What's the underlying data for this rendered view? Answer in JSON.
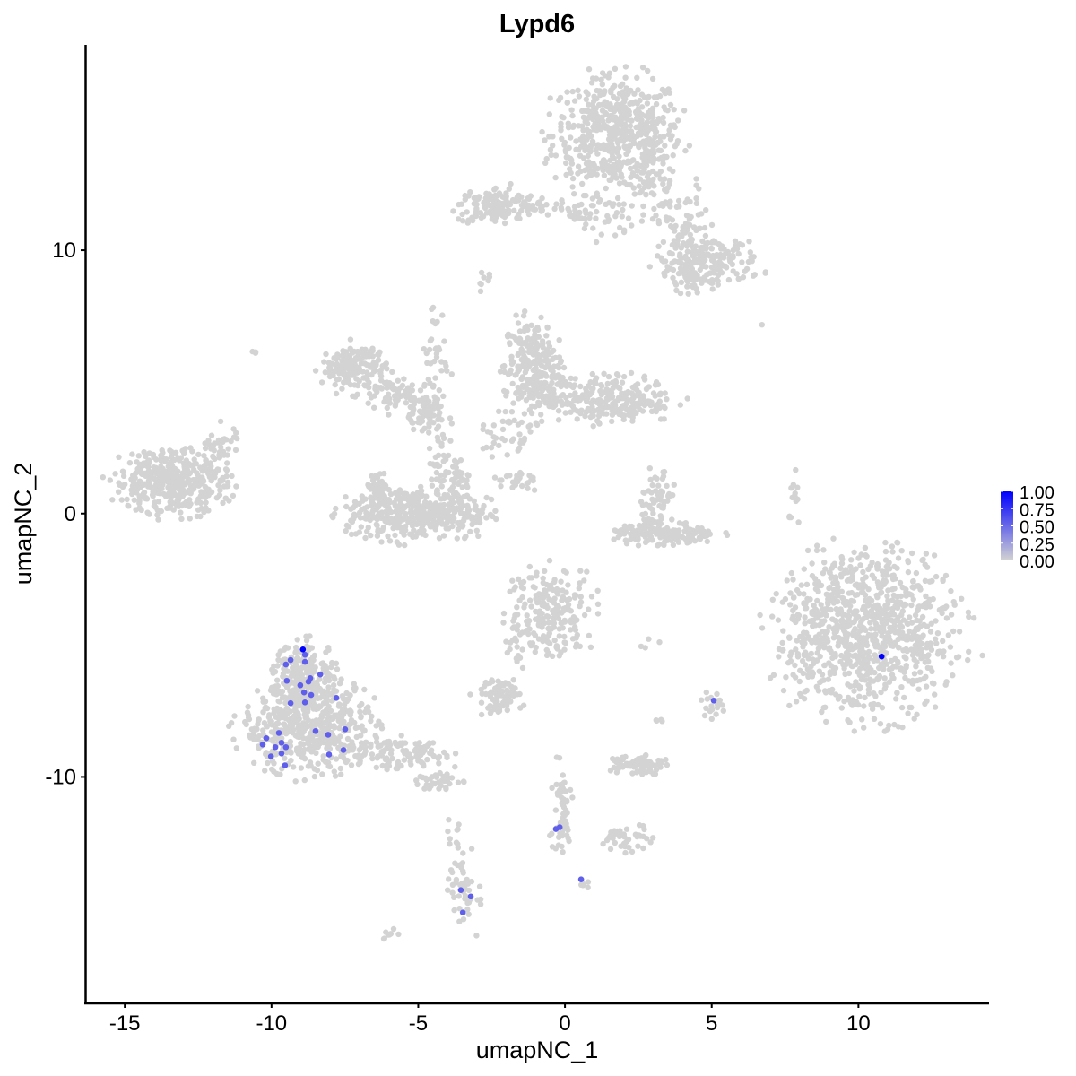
{
  "chart_data": {
    "type": "scatter",
    "title": "Lypd6",
    "xlabel": "umapNC_1",
    "ylabel": "umapNC_2",
    "xlim": [
      -16.35,
      14.45
    ],
    "ylim": [
      -18.6,
      17.8
    ],
    "x_ticks": [
      -15,
      -10,
      -5,
      0,
      5,
      10
    ],
    "y_ticks": [
      -10,
      0,
      10
    ],
    "grid": false,
    "color_scale": {
      "low": "#d3d3d3",
      "high": "#0000ff",
      "range": [
        0,
        1
      ]
    },
    "legend": {
      "position": "right",
      "labels": [
        "1.00",
        "0.75",
        "0.50",
        "0.25",
        "0.00"
      ]
    },
    "background_cells_value": 0,
    "cell_clusters": [
      {
        "x": 1.77,
        "y": 14.4,
        "sx": 1.1,
        "sy": 1.1,
        "n": 550
      },
      {
        "x": 2.75,
        "y": 13.2,
        "sx": 0.4,
        "sy": 0.9,
        "n": 60
      },
      {
        "x": -2.3,
        "y": 11.7,
        "sx": 0.7,
        "sy": 0.35,
        "n": 150
      },
      {
        "x": -0.5,
        "y": 11.6,
        "sx": 0.9,
        "sy": 0.2,
        "n": 40
      },
      {
        "x": 1.3,
        "y": 11.2,
        "sx": 0.5,
        "sy": 0.4,
        "n": 30
      },
      {
        "x": 3.97,
        "y": 11.0,
        "sx": 0.6,
        "sy": 0.8,
        "n": 70
      },
      {
        "x": 4.9,
        "y": 9.6,
        "sx": 0.9,
        "sy": 0.45,
        "n": 170
      },
      {
        "x": 4.3,
        "y": 9.0,
        "sx": 0.4,
        "sy": 0.3,
        "n": 40
      },
      {
        "x": -2.75,
        "y": 8.77,
        "sx": 0.15,
        "sy": 0.2,
        "n": 8
      },
      {
        "x": -7.18,
        "y": 5.53,
        "sx": 0.55,
        "sy": 0.45,
        "n": 170
      },
      {
        "x": -5.8,
        "y": 4.5,
        "sx": 0.6,
        "sy": 0.35,
        "n": 70
      },
      {
        "x": -4.89,
        "y": 3.82,
        "sx": 0.3,
        "sy": 0.3,
        "n": 50
      },
      {
        "x": -4.28,
        "y": 2.46,
        "sx": 0.2,
        "sy": 0.8,
        "n": 40
      },
      {
        "x": -4.4,
        "y": 6.0,
        "sx": 0.25,
        "sy": 1.2,
        "n": 40
      },
      {
        "x": -5.04,
        "y": 0.0,
        "sx": 1.2,
        "sy": 0.5,
        "n": 420
      },
      {
        "x": -6.42,
        "y": 0.9,
        "sx": 0.2,
        "sy": 0.4,
        "n": 45
      },
      {
        "x": -3.67,
        "y": 1.1,
        "sx": 0.2,
        "sy": 0.5,
        "n": 45
      },
      {
        "x": -1.07,
        "y": 5.5,
        "sx": 0.5,
        "sy": 0.95,
        "n": 260
      },
      {
        "x": 1.53,
        "y": 4.33,
        "sx": 1.1,
        "sy": 0.45,
        "n": 270
      },
      {
        "x": -2.14,
        "y": 3.14,
        "sx": 0.45,
        "sy": 0.5,
        "n": 40
      },
      {
        "x": -1.68,
        "y": 1.26,
        "sx": 0.4,
        "sy": 0.2,
        "n": 25
      },
      {
        "x": 3.36,
        "y": -0.78,
        "sx": 0.9,
        "sy": 0.22,
        "n": 150
      },
      {
        "x": 3.2,
        "y": 0.6,
        "sx": 0.3,
        "sy": 0.6,
        "n": 60
      },
      {
        "x": 7.85,
        "y": 0.41,
        "sx": 0.1,
        "sy": 0.6,
        "n": 15
      },
      {
        "x": 10.24,
        "y": -4.54,
        "sx": 1.55,
        "sy": 1.55,
        "n": 950
      },
      {
        "x": -13.45,
        "y": 1.2,
        "sx": 0.95,
        "sy": 0.6,
        "n": 420
      },
      {
        "x": -11.77,
        "y": 2.46,
        "sx": 0.35,
        "sy": 0.5,
        "n": 40
      },
      {
        "x": -10.54,
        "y": 6.14,
        "sx": 0.05,
        "sy": 0.05,
        "n": 3
      },
      {
        "x": -0.46,
        "y": -3.69,
        "sx": 0.75,
        "sy": 0.85,
        "n": 210
      },
      {
        "x": -8.71,
        "y": -8.2,
        "sx": 1.15,
        "sy": 0.85,
        "n": 520
      },
      {
        "x": -8.86,
        "y": -6.1,
        "sx": 0.55,
        "sy": 0.6,
        "n": 200
      },
      {
        "x": -5.5,
        "y": -9.15,
        "sx": 1.0,
        "sy": 0.3,
        "n": 110
      },
      {
        "x": -4.28,
        "y": -10.17,
        "sx": 0.4,
        "sy": 0.2,
        "n": 40
      },
      {
        "x": -2.29,
        "y": -6.93,
        "sx": 0.4,
        "sy": 0.35,
        "n": 80
      },
      {
        "x": -1.68,
        "y": -5.05,
        "sx": 0.2,
        "sy": 0.6,
        "n": 15
      },
      {
        "x": 2.44,
        "y": -9.49,
        "sx": 0.5,
        "sy": 0.2,
        "n": 80
      },
      {
        "x": 5.04,
        "y": -7.27,
        "sx": 0.2,
        "sy": 0.3,
        "n": 20
      },
      {
        "x": -0.15,
        "y": -11.3,
        "sx": 0.2,
        "sy": 0.9,
        "n": 60
      },
      {
        "x": 2.14,
        "y": -12.39,
        "sx": 0.4,
        "sy": 0.3,
        "n": 40
      },
      {
        "x": -3.36,
        "y": -14.3,
        "sx": 0.3,
        "sy": 0.9,
        "n": 50
      },
      {
        "x": -5.96,
        "y": -16.0,
        "sx": 0.15,
        "sy": 0.1,
        "n": 8
      },
      {
        "x": -3.82,
        "y": -12.2,
        "sx": 0.1,
        "sy": 0.3,
        "n": 8
      },
      {
        "x": 0.6,
        "y": -14.1,
        "sx": 0.1,
        "sy": 0.1,
        "n": 5
      },
      {
        "x": 6.72,
        "y": 7.17,
        "sx": 0.02,
        "sy": 0.02,
        "n": 1
      },
      {
        "x": 2.8,
        "y": -5.0,
        "sx": 0.2,
        "sy": 0.1,
        "n": 4
      },
      {
        "x": 3.3,
        "y": -7.8,
        "sx": 0.1,
        "sy": 0.1,
        "n": 4
      }
    ],
    "expressing_cells": [
      {
        "x": -8.86,
        "y": -5.36,
        "value": 0.55
      },
      {
        "x": -9.35,
        "y": -5.56,
        "value": 0.55
      },
      {
        "x": -9.51,
        "y": -5.73,
        "value": 0.55
      },
      {
        "x": -8.86,
        "y": -5.63,
        "value": 0.55
      },
      {
        "x": -8.34,
        "y": -6.11,
        "value": 0.55
      },
      {
        "x": -9.48,
        "y": -6.35,
        "value": 0.55
      },
      {
        "x": -8.68,
        "y": -6.25,
        "value": 0.55
      },
      {
        "x": -8.74,
        "y": -6.38,
        "value": 0.55
      },
      {
        "x": -9.02,
        "y": -6.52,
        "value": 0.55
      },
      {
        "x": -8.89,
        "y": -6.79,
        "value": 0.55
      },
      {
        "x": -8.65,
        "y": -6.89,
        "value": 0.55
      },
      {
        "x": -7.79,
        "y": -7.0,
        "value": 0.55
      },
      {
        "x": -9.35,
        "y": -7.2,
        "value": 0.55
      },
      {
        "x": -8.86,
        "y": -7.17,
        "value": 0.55
      },
      {
        "x": -9.75,
        "y": -8.33,
        "value": 0.55
      },
      {
        "x": -8.5,
        "y": -8.26,
        "value": 0.55
      },
      {
        "x": -8.07,
        "y": -8.4,
        "value": 0.55
      },
      {
        "x": -7.49,
        "y": -8.19,
        "value": 0.55
      },
      {
        "x": -10.18,
        "y": -8.53,
        "value": 0.55
      },
      {
        "x": -10.3,
        "y": -8.77,
        "value": 0.55
      },
      {
        "x": -9.66,
        "y": -8.7,
        "value": 0.55
      },
      {
        "x": -9.87,
        "y": -8.87,
        "value": 0.55
      },
      {
        "x": -9.51,
        "y": -8.87,
        "value": 0.55
      },
      {
        "x": -7.55,
        "y": -8.98,
        "value": 0.55
      },
      {
        "x": -9.66,
        "y": -9.11,
        "value": 0.55
      },
      {
        "x": -10.02,
        "y": -9.22,
        "value": 0.55
      },
      {
        "x": -8.04,
        "y": -9.15,
        "value": 0.55
      },
      {
        "x": -9.54,
        "y": -9.56,
        "value": 0.55
      },
      {
        "x": 5.07,
        "y": -7.1,
        "value": 0.55
      },
      {
        "x": -0.31,
        "y": -11.98,
        "value": 0.55
      },
      {
        "x": -0.18,
        "y": -11.91,
        "value": 0.55
      },
      {
        "x": 0.55,
        "y": -13.89,
        "value": 0.55
      },
      {
        "x": -3.55,
        "y": -14.3,
        "value": 0.55
      },
      {
        "x": -3.21,
        "y": -14.54,
        "value": 0.55
      },
      {
        "x": -3.48,
        "y": -15.15,
        "value": 0.55
      },
      {
        "x": -8.93,
        "y": -5.16,
        "value": 1.0
      },
      {
        "x": 10.79,
        "y": -5.43,
        "value": 1.0
      }
    ]
  }
}
